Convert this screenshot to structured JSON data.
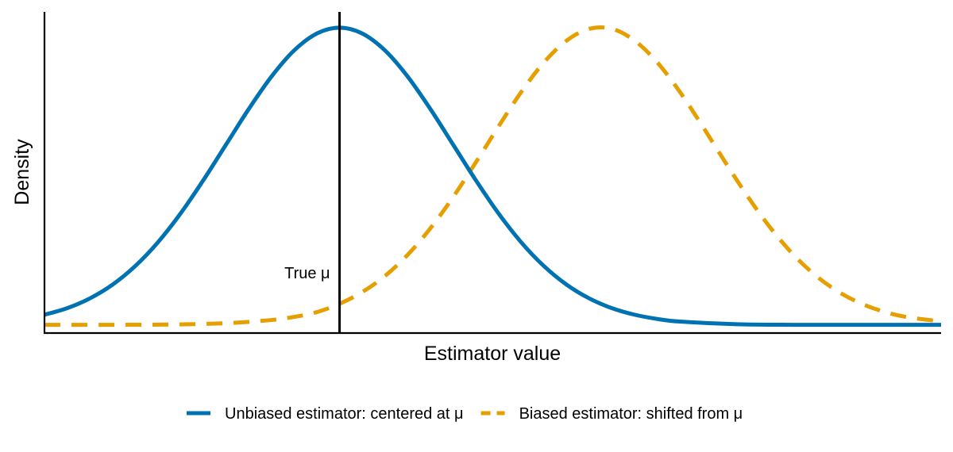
{
  "chart_data": {
    "type": "line",
    "xlabel": "Estimator value",
    "ylabel": "Density",
    "true_value_label": "True μ",
    "legend_position": "bottom",
    "grid": false,
    "true_value": 0,
    "xlim": [
      -2.6,
      5.3
    ],
    "ylim": [
      -0.011,
      0.42
    ],
    "series": [
      {
        "name": "Unbiased estimator: centered at μ",
        "color": "#0072B2",
        "dash": "solid",
        "x": [
          -2.6,
          -2.4,
          -2.2,
          -2.0,
          -1.8,
          -1.6,
          -1.4,
          -1.2,
          -1.0,
          -0.8,
          -0.6,
          -0.4,
          -0.2,
          0.0,
          0.2,
          0.4,
          0.6,
          0.8,
          1.0,
          1.2,
          1.4,
          1.6,
          1.8,
          2.0,
          2.2,
          2.4,
          2.6,
          2.8,
          3.0,
          3.5,
          4.0,
          4.5,
          5.0,
          5.3
        ],
        "y": [
          0.0136,
          0.0224,
          0.0355,
          0.054,
          0.079,
          0.1109,
          0.1497,
          0.1942,
          0.242,
          0.2897,
          0.3332,
          0.3683,
          0.391,
          0.3989,
          0.391,
          0.3683,
          0.3332,
          0.2897,
          0.242,
          0.1942,
          0.1497,
          0.1109,
          0.079,
          0.054,
          0.0355,
          0.0224,
          0.0136,
          0.0079,
          0.0044,
          0.0009,
          0.0001,
          0.0,
          0.0,
          0.0
        ]
      },
      {
        "name": "Biased estimator: shifted from μ",
        "color": "#E69F00",
        "dash": "dashed",
        "x": [
          -2.6,
          -2.0,
          -1.5,
          -1.0,
          -0.6,
          -0.4,
          -0.2,
          0.0,
          0.2,
          0.4,
          0.6,
          0.8,
          1.0,
          1.2,
          1.4,
          1.6,
          1.8,
          2.0,
          2.2,
          2.4,
          2.6,
          2.8,
          3.0,
          3.2,
          3.4,
          3.6,
          3.8,
          4.0,
          4.2,
          4.4,
          4.6,
          4.8,
          5.0,
          5.3
        ],
        "y": [
          0.0,
          0.0001,
          0.0004,
          0.0022,
          0.0065,
          0.0107,
          0.0171,
          0.0283,
          0.044,
          0.0656,
          0.094,
          0.1295,
          0.1714,
          0.2179,
          0.2661,
          0.3123,
          0.3521,
          0.3814,
          0.3973,
          0.3973,
          0.3814,
          0.3521,
          0.3123,
          0.2661,
          0.2179,
          0.1714,
          0.1295,
          0.094,
          0.0656,
          0.044,
          0.0283,
          0.0175,
          0.0104,
          0.0046
        ]
      }
    ]
  }
}
